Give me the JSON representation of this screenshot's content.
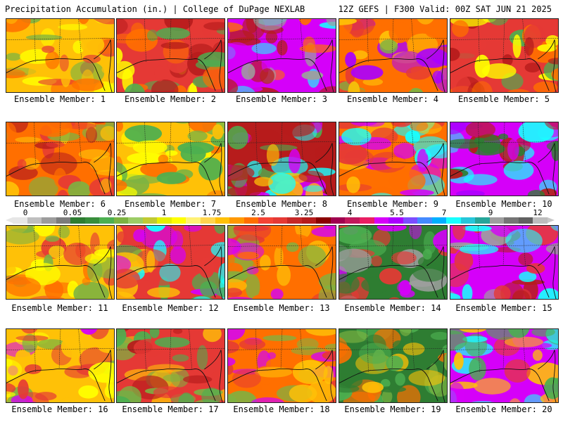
{
  "header": {
    "left_title": "Precipitation Accumulation (in.) | College of DuPage NEXLAB",
    "right_title": "12Z GEFS | F300 Valid: 00Z SAT JUN 21 2025"
  },
  "colorbar": {
    "tick_labels": [
      "0",
      "0.05",
      "0.25",
      "1",
      "1.75",
      "2.5",
      "3.25",
      "4",
      "5.5",
      "7",
      "9",
      "12"
    ],
    "colors": [
      "#e6e6e6",
      "#bfbfbf",
      "#9c9c9c",
      "#7c7c7c",
      "#2e7d32",
      "#388e3c",
      "#4caf50",
      "#7cb342",
      "#9ccc65",
      "#c0ca33",
      "#e6ee00",
      "#ffff00",
      "#fff176",
      "#ffd54f",
      "#ffc107",
      "#ff9800",
      "#ff6f00",
      "#f44336",
      "#e53935",
      "#c62828",
      "#b71c1c",
      "#8b0000",
      "#a0004f",
      "#c2185b",
      "#e91e63",
      "#d500f9",
      "#aa00ff",
      "#7c4dff",
      "#448aff",
      "#00b0ff",
      "#18ffff",
      "#26c6da",
      "#26a69a",
      "#9e9e9e",
      "#757575",
      "#616161",
      "#bdbdbd"
    ]
  },
  "members": [
    {
      "label": "Ensemble Member: 1",
      "palette": [
        "#ffc107",
        "#ff6f00",
        "#e53935",
        "#7cb342",
        "#ffff00"
      ]
    },
    {
      "label": "Ensemble Member: 2",
      "palette": [
        "#e53935",
        "#b71c1c",
        "#ff6f00",
        "#4caf50",
        "#ffff00"
      ]
    },
    {
      "label": "Ensemble Member: 3",
      "palette": [
        "#d500f9",
        "#b71c1c",
        "#18ffff",
        "#ff6f00",
        "#9e9e9e"
      ]
    },
    {
      "label": "Ensemble Member: 4",
      "palette": [
        "#ff6f00",
        "#e53935",
        "#ffc107",
        "#7cb342",
        "#aa00ff"
      ]
    },
    {
      "label": "Ensemble Member: 5",
      "palette": [
        "#e53935",
        "#b71c1c",
        "#ff6f00",
        "#4caf50",
        "#ffff00"
      ]
    },
    {
      "label": "Ensemble Member: 6",
      "palette": [
        "#ff6f00",
        "#e53935",
        "#b71c1c",
        "#ffc107",
        "#7cb342"
      ]
    },
    {
      "label": "Ensemble Member: 7",
      "palette": [
        "#ffc107",
        "#ff6f00",
        "#7cb342",
        "#4caf50",
        "#ffff00"
      ]
    },
    {
      "label": "Ensemble Member: 8",
      "palette": [
        "#b71c1c",
        "#d500f9",
        "#18ffff",
        "#4caf50",
        "#ffc107"
      ]
    },
    {
      "label": "Ensemble Member: 9",
      "palette": [
        "#ff6f00",
        "#d500f9",
        "#18ffff",
        "#e53935",
        "#ffc107"
      ]
    },
    {
      "label": "Ensemble Member: 10",
      "palette": [
        "#d500f9",
        "#18ffff",
        "#b71c1c",
        "#2e7d32",
        "#aa00ff"
      ]
    },
    {
      "label": "Ensemble Member: 11",
      "palette": [
        "#ffc107",
        "#ff6f00",
        "#7cb342",
        "#ffff00",
        "#e53935"
      ]
    },
    {
      "label": "Ensemble Member: 12",
      "palette": [
        "#e53935",
        "#d500f9",
        "#4caf50",
        "#ffc107",
        "#18ffff"
      ]
    },
    {
      "label": "Ensemble Member: 13",
      "palette": [
        "#ff6f00",
        "#e53935",
        "#7cb342",
        "#ffc107",
        "#d500f9"
      ]
    },
    {
      "label": "Ensemble Member: 14",
      "palette": [
        "#2e7d32",
        "#4caf50",
        "#d500f9",
        "#e53935",
        "#9e9e9e"
      ]
    },
    {
      "label": "Ensemble Member: 15",
      "palette": [
        "#d500f9",
        "#b71c1c",
        "#9e9e9e",
        "#18ffff",
        "#e53935"
      ]
    },
    {
      "label": "Ensemble Member: 16",
      "palette": [
        "#ffc107",
        "#7cb342",
        "#e53935",
        "#d500f9",
        "#ffff00"
      ]
    },
    {
      "label": "Ensemble Member: 17",
      "palette": [
        "#e53935",
        "#b71c1c",
        "#4caf50",
        "#7cb342",
        "#ffc107"
      ]
    },
    {
      "label": "Ensemble Member: 18",
      "palette": [
        "#ff6f00",
        "#d500f9",
        "#7cb342",
        "#ffc107",
        "#e53935"
      ]
    },
    {
      "label": "Ensemble Member: 19",
      "palette": [
        "#2e7d32",
        "#4caf50",
        "#ffc107",
        "#ff6f00",
        "#7cb342"
      ]
    },
    {
      "label": "Ensemble Member: 20",
      "palette": [
        "#d500f9",
        "#18ffff",
        "#e53935",
        "#4caf50",
        "#ffc107"
      ]
    }
  ]
}
